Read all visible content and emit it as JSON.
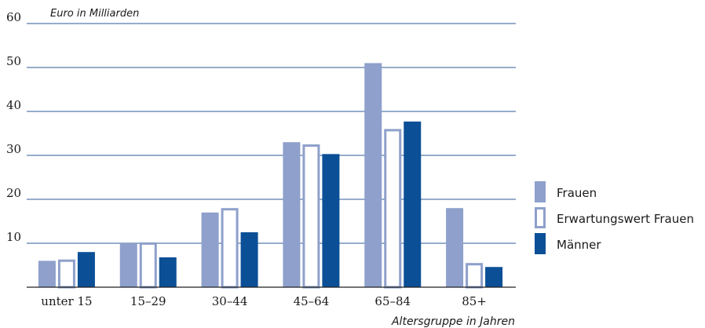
{
  "chart_data": {
    "type": "bar",
    "title": "",
    "ylabel": "Euro in Milliarden",
    "xlabel": "Altersgruppe in Jahren",
    "categories": [
      "unter 15",
      "15–29",
      "30–44",
      "45–64",
      "65–84",
      "85+"
    ],
    "series": [
      {
        "name": "Frauen",
        "values": [
          6,
          10,
          17,
          33,
          51,
          18
        ],
        "style": "filled",
        "color": "#8ea0cb"
      },
      {
        "name": "Erwartungswert Frauen",
        "values": [
          6.3,
          10.2,
          18,
          32.5,
          36,
          5.5
        ],
        "style": "outline",
        "color": "#8ea0cb"
      },
      {
        "name": "Männer",
        "values": [
          8,
          6.8,
          12.5,
          30.3,
          37.7,
          4.6
        ],
        "style": "filled",
        "color": "#0b4f97"
      }
    ],
    "ylim": [
      0,
      60
    ],
    "yticks": [
      10,
      20,
      30,
      40,
      50,
      60
    ],
    "ytick_labels": [
      "10",
      "20",
      "30",
      "40",
      "50",
      "60"
    ],
    "grid": true,
    "legend": "right",
    "colors": {
      "gridline": "#2d5b98",
      "axis": "#222222",
      "light_bar": "#8ea0cb",
      "dark_bar": "#0b4f97"
    }
  }
}
